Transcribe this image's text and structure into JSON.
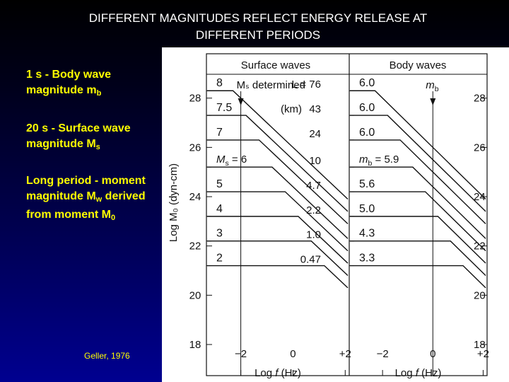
{
  "slide": {
    "title_line1": "DIFFERENT MAGNITUDES REFLECT ENERGY RELEASE AT",
    "title_line2": "DIFFERENT PERIODS",
    "bullets": [
      {
        "text": "1 s - Body wave magnitude m",
        "sub": "b",
        "after": ""
      },
      {
        "text": "20 s - Surface wave magnitude M",
        "sub": "s",
        "after": ""
      },
      {
        "text": "Long period - moment magnitude M",
        "sub": "w",
        "after": " derived from moment M",
        "sub2": "0"
      }
    ],
    "citation": "Geller, 1976"
  },
  "colors": {
    "title": "#ffffff",
    "bullet_text": "#ffff00",
    "background_top": "#000000",
    "background_bottom": "#000090",
    "figure_bg": "#ffffff",
    "line": "#111111"
  },
  "chart_data": {
    "type": "line",
    "ylabel": "Log M₀ (dyn-cm)",
    "yticks": [
      18,
      20,
      22,
      24,
      26,
      28
    ],
    "ylim": [
      18,
      29.8
    ],
    "panels": [
      {
        "header": "Surface waves",
        "annotation": "Mₛ determined",
        "marker_label": "",
        "marker_x": -2,
        "xlabel": "Log f (Hz)",
        "xticks": [
          -2,
          0,
          2
        ],
        "xtick_labels": [
          "−2",
          "0",
          "+2"
        ],
        "xlim": [
          -3.1,
          2.1
        ],
        "length_header": "L = 76",
        "length_unit": "(km)",
        "length_values": [
          "76",
          "43",
          "24",
          "10",
          "4.7",
          "2.2",
          "1.0",
          "0.47"
        ],
        "magnitude_labels": [
          "8",
          "7.5",
          "7",
          "Mₛ = 6",
          "5",
          "4",
          "3",
          "2"
        ],
        "series": [
          {
            "log_m0": 28.3,
            "corner": -2.3
          },
          {
            "log_m0": 27.3,
            "corner": -1.8
          },
          {
            "log_m0": 26.3,
            "corner": -1.3
          },
          {
            "log_m0": 25.2,
            "corner": -0.8
          },
          {
            "log_m0": 24.2,
            "corner": -0.3
          },
          {
            "log_m0": 23.2,
            "corner": 0.2
          },
          {
            "log_m0": 22.2,
            "corner": 0.7
          },
          {
            "log_m0": 21.2,
            "corner": 1.2
          }
        ]
      },
      {
        "header": "Body waves",
        "annotation": "",
        "marker_label": "m_b",
        "marker_x": 0,
        "xlabel": "Log f (Hz)",
        "xticks": [
          -2,
          0,
          2
        ],
        "xtick_labels": [
          "−2",
          "0",
          "+2"
        ],
        "xlim": [
          -3.1,
          2.1
        ],
        "magnitude_labels": [
          "6.0",
          "6.0",
          "6.0",
          "m_b = 5.9",
          "5.6",
          "5.0",
          "4.3",
          "3.3"
        ],
        "series": [
          {
            "log_m0": 28.3,
            "corner": -2.3
          },
          {
            "log_m0": 27.3,
            "corner": -1.8
          },
          {
            "log_m0": 26.3,
            "corner": -1.3
          },
          {
            "log_m0": 25.2,
            "corner": -0.8
          },
          {
            "log_m0": 24.2,
            "corner": -0.3
          },
          {
            "log_m0": 23.2,
            "corner": 0.2
          },
          {
            "log_m0": 22.2,
            "corner": 0.7
          },
          {
            "log_m0": 21.2,
            "corner": 1.2
          }
        ]
      }
    ]
  }
}
